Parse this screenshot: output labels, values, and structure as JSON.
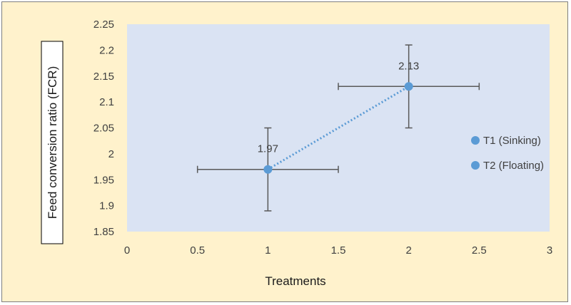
{
  "chart_data": {
    "type": "scatter",
    "xlabel": "Treatments",
    "ylabel": "Feed conversion ratio (FCR)",
    "xlim": [
      0,
      3
    ],
    "ylim": [
      1.85,
      2.25
    ],
    "x_ticks": [
      "0",
      "0.5",
      "1",
      "1.5",
      "2",
      "2.5",
      "3"
    ],
    "y_ticks": [
      "1.85",
      "1.9",
      "1.95",
      "2",
      "2.05",
      "2.1",
      "2.15",
      "2.2",
      "2.25"
    ],
    "grid": false,
    "legend_position": "right",
    "series": [
      {
        "name": "T1 (Sinking)",
        "x": 1,
        "y": 1.97,
        "x_error": 0.5,
        "y_error": 0.08,
        "label": "1.97",
        "color": "#5b9bd5"
      },
      {
        "name": "T2 (Floating)",
        "x": 2,
        "y": 2.13,
        "x_error": 0.5,
        "y_error": 0.08,
        "label": "2.13",
        "color": "#5b9bd5"
      }
    ],
    "connector": {
      "style": "dotted",
      "color": "#5b9bd5"
    },
    "colors": {
      "plot_bg": "#dae3f3",
      "chart_bg": "#fff2cc",
      "error_bar": "#595959"
    }
  }
}
